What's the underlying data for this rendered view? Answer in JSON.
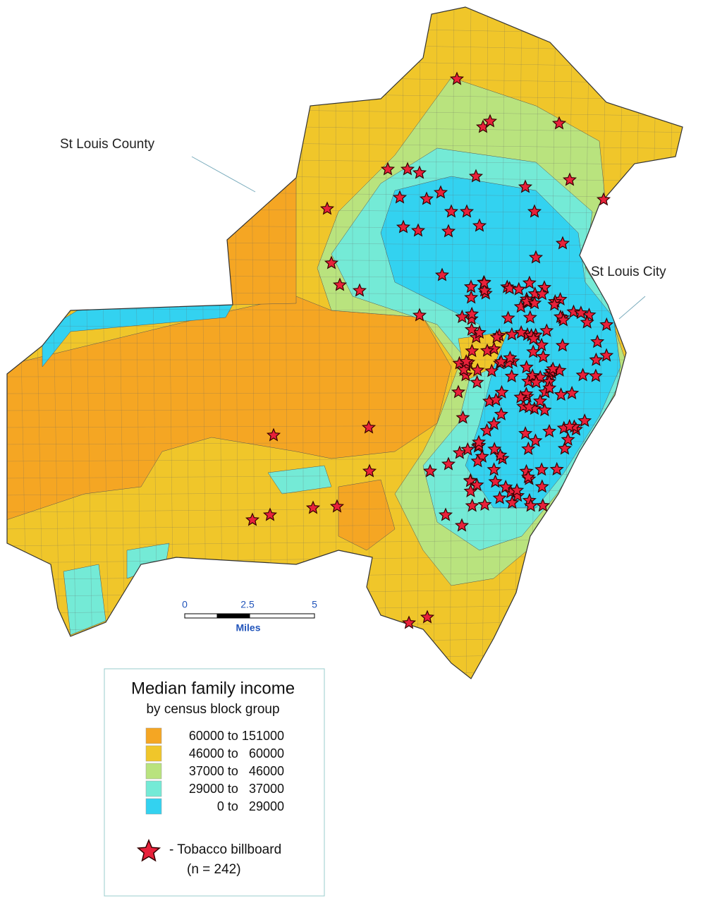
{
  "labels": {
    "county": "St  Louis County",
    "city": "St  Louis City"
  },
  "scale_bar": {
    "ticks": [
      0,
      2.5,
      5
    ],
    "unit": "Miles"
  },
  "legend": {
    "title": "Median family income",
    "subtitle": "by census block group",
    "items": [
      {
        "label": "60000 to 151000",
        "color": "#f5a623"
      },
      {
        "label": "46000 to   60000",
        "color": "#f0c62a"
      },
      {
        "label": "37000 to   46000",
        "color": "#b9e37e"
      },
      {
        "label": "29000 to   37000",
        "color": "#74ead6"
      },
      {
        "label": "0 to   29000",
        "color": "#33d2f0"
      }
    ],
    "marker_label": "- Tobacco billboard",
    "count_label": "(n = 242)"
  }
}
